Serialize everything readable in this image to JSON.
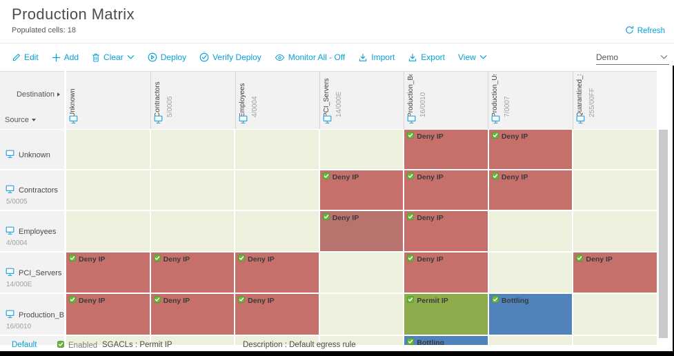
{
  "page": {
    "title": "Production Matrix",
    "populated_cells": "Populated cells: 18",
    "refresh_label": "Refresh"
  },
  "toolbar": {
    "items": [
      {
        "name": "edit",
        "label": "Edit",
        "icon": "pencil-icon",
        "chevron": false
      },
      {
        "name": "add",
        "label": "Add",
        "icon": "plus-icon",
        "chevron": false
      },
      {
        "name": "clear",
        "label": "Clear",
        "icon": "trash-icon",
        "chevron": true
      },
      {
        "name": "deploy",
        "label": "Deploy",
        "icon": "deploy-circle-icon",
        "chevron": false
      },
      {
        "name": "verify-deploy",
        "label": "Verify Deploy",
        "icon": "verify-check-circle-icon",
        "chevron": false
      },
      {
        "name": "monitor-all",
        "label": "Monitor All - Off",
        "icon": "eye-icon",
        "chevron": false
      },
      {
        "name": "import",
        "label": "Import",
        "icon": "import-icon",
        "chevron": false
      },
      {
        "name": "export",
        "label": "Export",
        "icon": "export-icon",
        "chevron": false
      },
      {
        "name": "view",
        "label": "View",
        "icon": null,
        "chevron": true
      }
    ],
    "view_selector": {
      "value": "Demo"
    }
  },
  "matrix": {
    "corner": {
      "destination_label": "Destination",
      "source_label": "Source"
    },
    "columns": [
      {
        "name": "Unknown",
        "sub": ""
      },
      {
        "name": "Contractors",
        "sub": "5/0005"
      },
      {
        "name": "Employees",
        "sub": "4/0004"
      },
      {
        "name": "PCI_Servers",
        "sub": "14/000E"
      },
      {
        "name": "Production_Bott...",
        "sub": "16/0010"
      },
      {
        "name": "Production_Use...",
        "sub": "7/0007"
      },
      {
        "name": "Quarantined_Sys...",
        "sub": "255/00FF"
      }
    ],
    "rows": [
      {
        "name": "Unknown",
        "sub": ""
      },
      {
        "name": "Contractors",
        "sub": "5/0005"
      },
      {
        "name": "Employees",
        "sub": "4/0004"
      },
      {
        "name": "PCI_Servers",
        "sub": "14/000E"
      },
      {
        "name": "Production_Bott...",
        "sub": "16/0010"
      },
      {
        "name": "",
        "sub": ""
      }
    ],
    "cells": [
      [
        null,
        null,
        null,
        null,
        {
          "label": "Deny IP",
          "type": "deny"
        },
        {
          "label": "Deny IP",
          "type": "deny"
        },
        null
      ],
      [
        null,
        null,
        null,
        {
          "label": "Deny IP",
          "type": "deny"
        },
        {
          "label": "Deny IP",
          "type": "deny"
        },
        {
          "label": "Deny IP",
          "type": "deny"
        },
        null
      ],
      [
        null,
        null,
        null,
        {
          "label": "Deny IP",
          "type": "deny_selected"
        },
        {
          "label": "Deny IP",
          "type": "deny"
        },
        null,
        null
      ],
      [
        {
          "label": "Deny IP",
          "type": "deny"
        },
        {
          "label": "Deny IP",
          "type": "deny"
        },
        {
          "label": "Deny IP",
          "type": "deny"
        },
        null,
        {
          "label": "Deny IP",
          "type": "deny"
        },
        null,
        {
          "label": "Deny IP",
          "type": "deny"
        }
      ],
      [
        {
          "label": "Deny IP",
          "type": "deny"
        },
        {
          "label": "Deny IP",
          "type": "deny"
        },
        {
          "label": "Deny IP",
          "type": "deny"
        },
        null,
        {
          "label": "Permit IP",
          "type": "permit"
        },
        {
          "label": "Bottling",
          "type": "sgacl"
        },
        null
      ],
      [
        null,
        null,
        null,
        null,
        {
          "label": "Bottling",
          "type": "sgacl"
        },
        null,
        null
      ]
    ]
  },
  "footer": {
    "default_label": "Default",
    "enabled_label": "Enabled",
    "sgacls_text": "SGACLs : Permit IP",
    "description_text": "Description : Default egress rule"
  },
  "colors": {
    "accent_blue": "#049fd9",
    "cell_deny": "#c5706b",
    "cell_deny_selected": "#b8736f",
    "cell_permit": "#8dad4c",
    "cell_sgacl": "#5083bb",
    "cell_empty": "#edf0dd",
    "check_green": "#6cb33f",
    "header_bg": "#f2f2f3",
    "monitor_icon_blue": "#29a3dc"
  }
}
